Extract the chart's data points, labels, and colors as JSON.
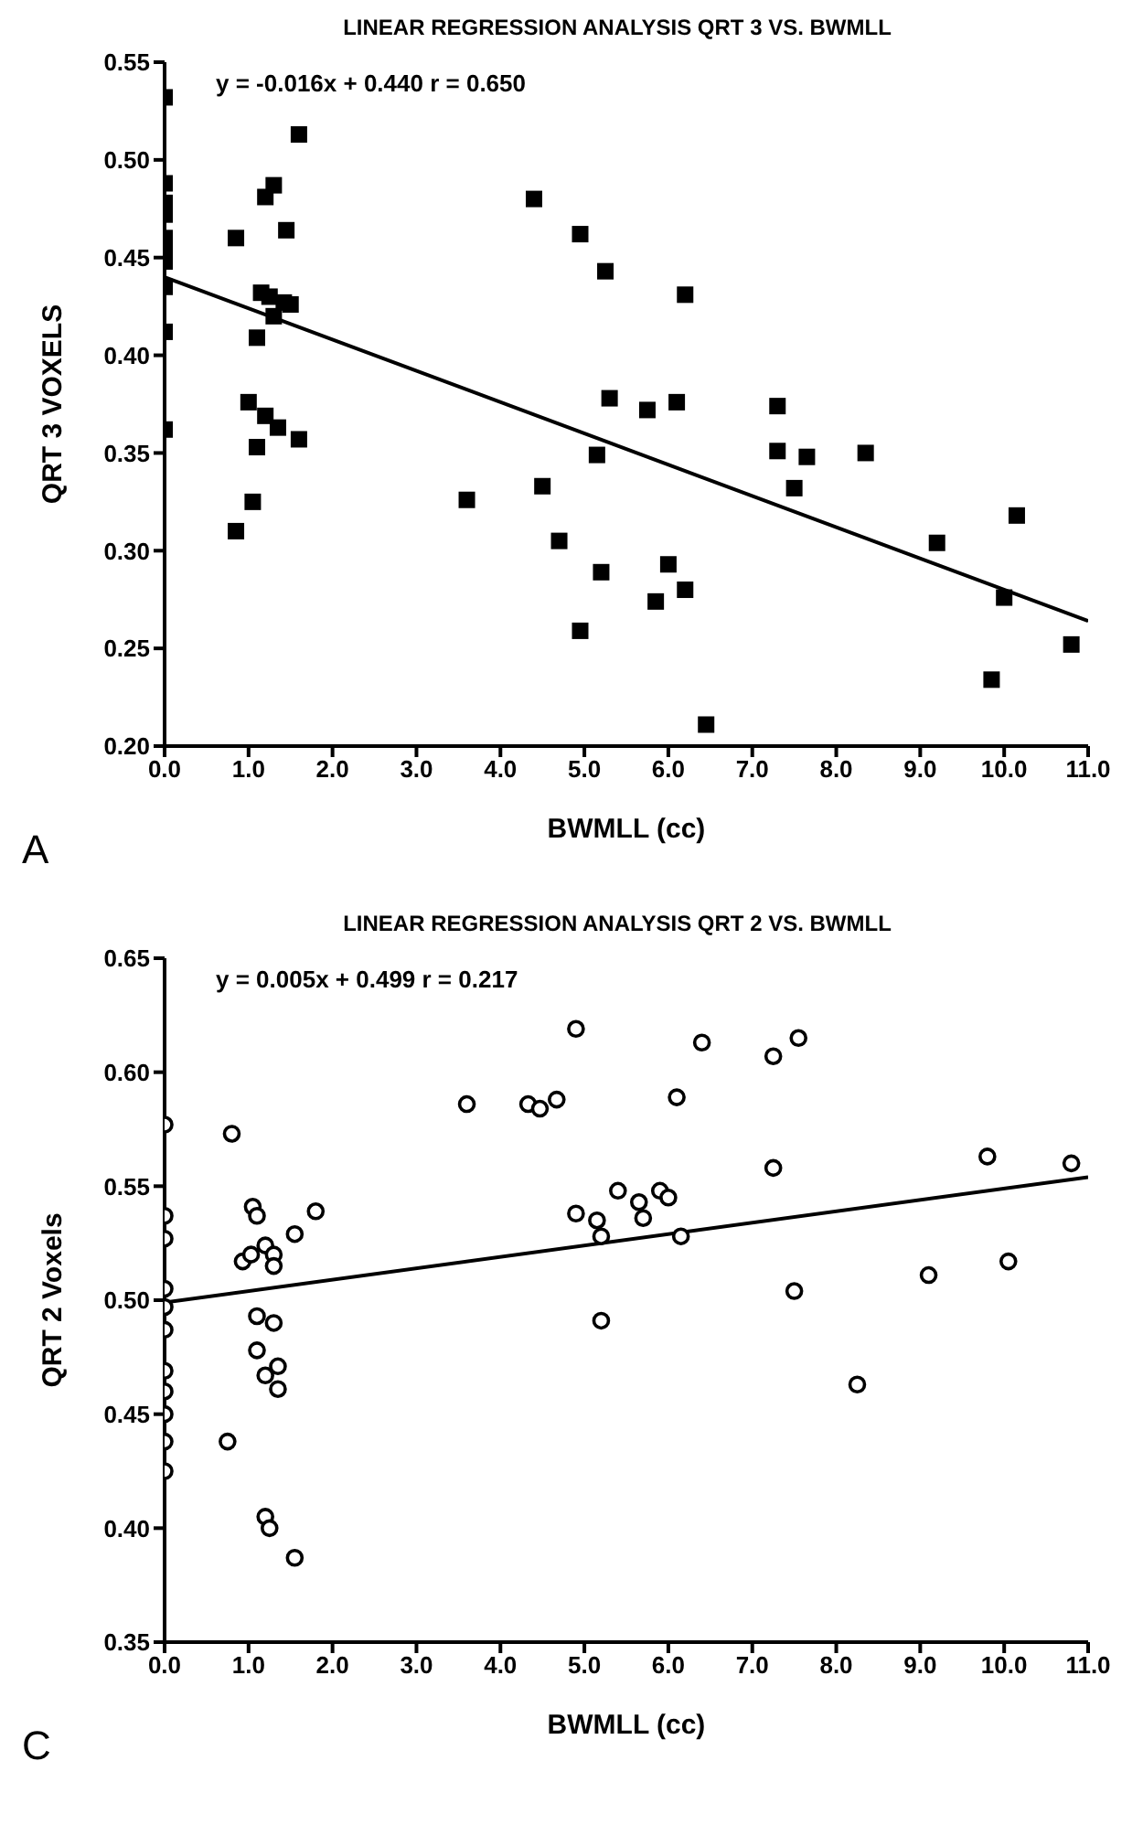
{
  "chart_data": [
    {
      "type": "scatter",
      "title": "LINEAR REGRESSION ANALYSIS QRT 3  VS. BWMLL",
      "xlabel": "BWMLL (cc)",
      "ylabel": "QRT 3 VOXELS",
      "annotations": [
        "y =  -0.016x + 0.440   r = 0.650",
        "A"
      ],
      "grid": false,
      "legend": false,
      "xlim": [
        0,
        11
      ],
      "xticks": [
        {
          "value": 0,
          "label": "0.0"
        },
        {
          "value": 1,
          "label": "1.0"
        },
        {
          "value": 2,
          "label": "2.0"
        },
        {
          "value": 3,
          "label": "3.0"
        },
        {
          "value": 4,
          "label": "4.0"
        },
        {
          "value": 5,
          "label": "5.0"
        },
        {
          "value": 6,
          "label": "6.0"
        },
        {
          "value": 7,
          "label": "7.0"
        },
        {
          "value": 8,
          "label": "8.0"
        },
        {
          "value": 9,
          "label": "9.0"
        },
        {
          "value": 10,
          "label": "10.0"
        },
        {
          "value": 11,
          "label": "11.0"
        }
      ],
      "ylim": [
        0.2,
        0.55
      ],
      "yticks": [
        {
          "value": 0.2,
          "label": "0.20"
        },
        0.25,
        {
          "value": 0.3,
          "label": "0.30"
        },
        0.35,
        {
          "value": 0.4,
          "label": "0.40"
        },
        0.45,
        {
          "value": 0.5,
          "label": "0.50"
        },
        0.55
      ],
      "series": [
        {
          "marker": "square",
          "color": "#000000",
          "x": [
            0,
            0,
            0,
            0,
            0,
            0,
            0,
            0,
            0,
            0,
            0.85,
            0.85,
            1.0,
            1.05,
            1.1,
            1.1,
            1.15,
            1.2,
            1.2,
            1.25,
            1.3,
            1.3,
            1.42,
            1.35,
            1.45,
            1.5,
            1.6,
            1.6,
            3.6,
            4.4,
            4.5,
            4.7,
            4.95,
            4.95,
            5.15,
            5.25,
            5.3,
            5.2,
            5.75,
            5.85,
            6.0,
            6.1,
            6.2,
            6.2,
            6.45,
            7.3,
            7.3,
            7.5,
            7.65,
            8.35,
            9.2,
            9.85,
            10.0,
            10.15,
            10.8
          ],
          "values": [
            0.532,
            0.488,
            0.478,
            0.472,
            0.46,
            0.453,
            0.448,
            0.435,
            0.412,
            0.362,
            0.46,
            0.31,
            0.376,
            0.325,
            0.353,
            0.409,
            0.432,
            0.369,
            0.481,
            0.43,
            0.487,
            0.42,
            0.427,
            0.363,
            0.464,
            0.426,
            0.513,
            0.357,
            0.326,
            0.48,
            0.333,
            0.305,
            0.462,
            0.259,
            0.349,
            0.443,
            0.378,
            0.289,
            0.372,
            0.274,
            0.293,
            0.376,
            0.431,
            0.28,
            0.211,
            0.374,
            0.351,
            0.332,
            0.348,
            0.35,
            0.304,
            0.234,
            0.276,
            0.318,
            0.252
          ]
        },
        {
          "type": "line",
          "marker": "none",
          "color": "#000000",
          "x": [
            0,
            11
          ],
          "values": [
            0.44,
            0.264
          ]
        }
      ]
    },
    {
      "type": "scatter",
      "title": "LINEAR REGRESSION ANALYSIS QRT 2  VS. BWMLL",
      "xlabel": "BWMLL (cc)",
      "ylabel": "QRT 2 Voxels",
      "annotations": [
        "y = 0.005x + 0.499   r = 0.217",
        "C"
      ],
      "grid": false,
      "legend": false,
      "xlim": [
        0,
        11
      ],
      "xticks": [
        {
          "value": 0,
          "label": "0.0"
        },
        {
          "value": 1,
          "label": "1.0"
        },
        {
          "value": 2,
          "label": "2.0"
        },
        {
          "value": 3,
          "label": "3.0"
        },
        {
          "value": 4,
          "label": "4.0"
        },
        {
          "value": 5,
          "label": "5.0"
        },
        {
          "value": 6,
          "label": "6.0"
        },
        {
          "value": 7,
          "label": "7.0"
        },
        {
          "value": 8,
          "label": "8.0"
        },
        {
          "value": 9,
          "label": "9.0"
        },
        {
          "value": 10,
          "label": "10.0"
        },
        {
          "value": 11,
          "label": "11.0"
        }
      ],
      "ylim": [
        0.35,
        0.65
      ],
      "yticks": [
        0.35,
        {
          "value": 0.4,
          "label": "0.40"
        },
        0.45,
        {
          "value": 0.5,
          "label": "0.50"
        },
        0.55,
        {
          "value": 0.6,
          "label": "0.60"
        },
        0.65
      ],
      "series": [
        {
          "marker": "circle",
          "color": "#000000",
          "x": [
            0,
            0,
            0,
            0,
            0,
            0,
            0,
            0,
            0,
            0,
            0,
            0.8,
            0.75,
            0.93,
            1.03,
            1.05,
            1.1,
            1.1,
            1.1,
            1.2,
            1.2,
            1.2,
            1.25,
            1.3,
            1.3,
            1.3,
            1.35,
            1.35,
            1.55,
            1.55,
            1.8,
            3.6,
            4.33,
            4.47,
            4.67,
            4.9,
            4.9,
            5.15,
            5.2,
            5.2,
            5.4,
            5.65,
            5.7,
            5.9,
            6.0,
            6.1,
            6.15,
            6.4,
            7.25,
            7.25,
            7.5,
            7.55,
            8.25,
            9.1,
            9.8,
            10.05,
            10.8
          ],
          "values": [
            0.577,
            0.537,
            0.527,
            0.505,
            0.497,
            0.487,
            0.469,
            0.46,
            0.45,
            0.438,
            0.425,
            0.573,
            0.438,
            0.517,
            0.52,
            0.541,
            0.537,
            0.493,
            0.478,
            0.524,
            0.467,
            0.405,
            0.4,
            0.52,
            0.49,
            0.515,
            0.471,
            0.461,
            0.387,
            0.529,
            0.539,
            0.586,
            0.586,
            0.584,
            0.588,
            0.619,
            0.538,
            0.535,
            0.528,
            0.491,
            0.548,
            0.543,
            0.536,
            0.548,
            0.545,
            0.589,
            0.528,
            0.613,
            0.607,
            0.558,
            0.504,
            0.615,
            0.463,
            0.511,
            0.563,
            0.517,
            0.56
          ]
        },
        {
          "type": "line",
          "marker": "none",
          "color": "#000000",
          "x": [
            0,
            11
          ],
          "values": [
            0.499,
            0.554
          ]
        }
      ]
    }
  ]
}
